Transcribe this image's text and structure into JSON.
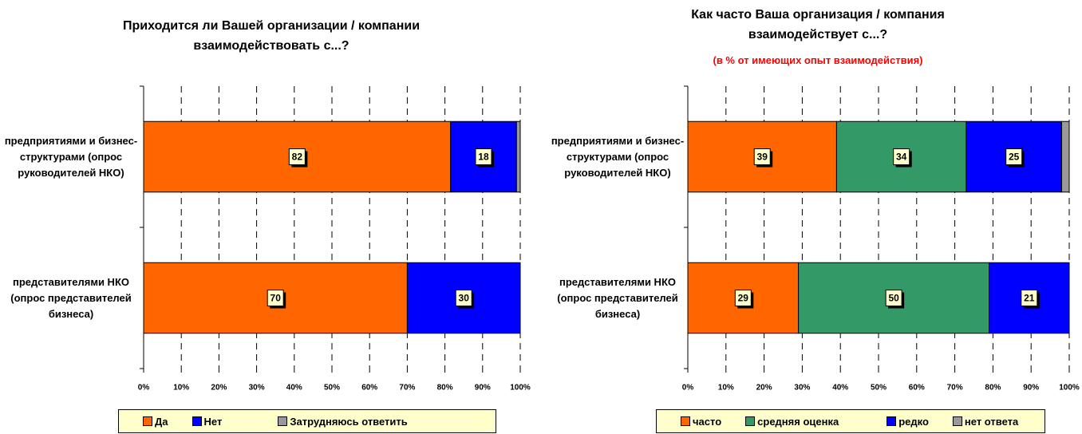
{
  "chart_data": [
    {
      "type": "stacked-bar-horizontal",
      "title": "Приходится ли Вашей организации / компании взаимодействовать с...?",
      "categories": [
        "предприятиями и бизнес-структурами (опрос руководителей НКО)",
        "представителями НКО (опрос представителей бизнеса)"
      ],
      "series": [
        {
          "name": "Да",
          "color": "#ff6600",
          "values": [
            81.5,
            70
          ],
          "value_labels": [
            "82",
            "70"
          ]
        },
        {
          "name": "Нет",
          "color": "#0000ff",
          "values": [
            17.5,
            30
          ],
          "value_labels": [
            "18",
            "30"
          ]
        },
        {
          "name": "Затрудняюсь ответить",
          "color": "#999999",
          "values": [
            1,
            0
          ]
        }
      ],
      "xlim": [
        0,
        100
      ],
      "xticks": [
        {
          "value": 0,
          "label": "0%"
        },
        {
          "value": 10,
          "label": "10%"
        },
        {
          "value": 20,
          "label": "20%"
        },
        {
          "value": 30,
          "label": "30%"
        },
        {
          "value": 40,
          "label": "40%"
        },
        {
          "value": 50,
          "label": "50%"
        },
        {
          "value": 60,
          "label": "60%"
        },
        {
          "value": 70,
          "label": "70%"
        },
        {
          "value": 80,
          "label": "80%"
        },
        {
          "value": 90,
          "label": "90%"
        },
        {
          "value": 100,
          "label": "100%"
        }
      ],
      "grid": true,
      "legend": "bottom"
    },
    {
      "type": "stacked-bar-horizontal",
      "title": "Как часто Ваша организация / компания взаимодействует с...?",
      "subtitle": "(в % от имеющих опыт взаимодействия)",
      "categories": [
        "предприятиями и бизнес-структурами (опрос руководителей НКО)",
        "представителями НКО (опрос представителей бизнеса)"
      ],
      "series": [
        {
          "name": "часто",
          "color": "#ff6600",
          "values": [
            39,
            29
          ]
        },
        {
          "name": "средняя оценка",
          "color": "#339966",
          "values": [
            34,
            50
          ]
        },
        {
          "name": "редко",
          "color": "#0000ff",
          "values": [
            25,
            21
          ]
        },
        {
          "name": "нет ответа",
          "color": "#999999",
          "values": [
            2,
            0
          ]
        }
      ],
      "xlim": [
        0,
        100
      ],
      "xticks": [
        {
          "value": 0,
          "label": "0%"
        },
        {
          "value": 10,
          "label": "10%"
        },
        {
          "value": 20,
          "label": "20%"
        },
        {
          "value": 30,
          "label": "30%"
        },
        {
          "value": 40,
          "label": "40%"
        },
        {
          "value": 50,
          "label": "50%"
        },
        {
          "value": 60,
          "label": "60%"
        },
        {
          "value": 70,
          "label": "70%"
        },
        {
          "value": 80,
          "label": "80%"
        },
        {
          "value": 90,
          "label": "90%"
        },
        {
          "value": 100,
          "label": "100%"
        }
      ],
      "grid": true,
      "legend": "bottom"
    }
  ]
}
